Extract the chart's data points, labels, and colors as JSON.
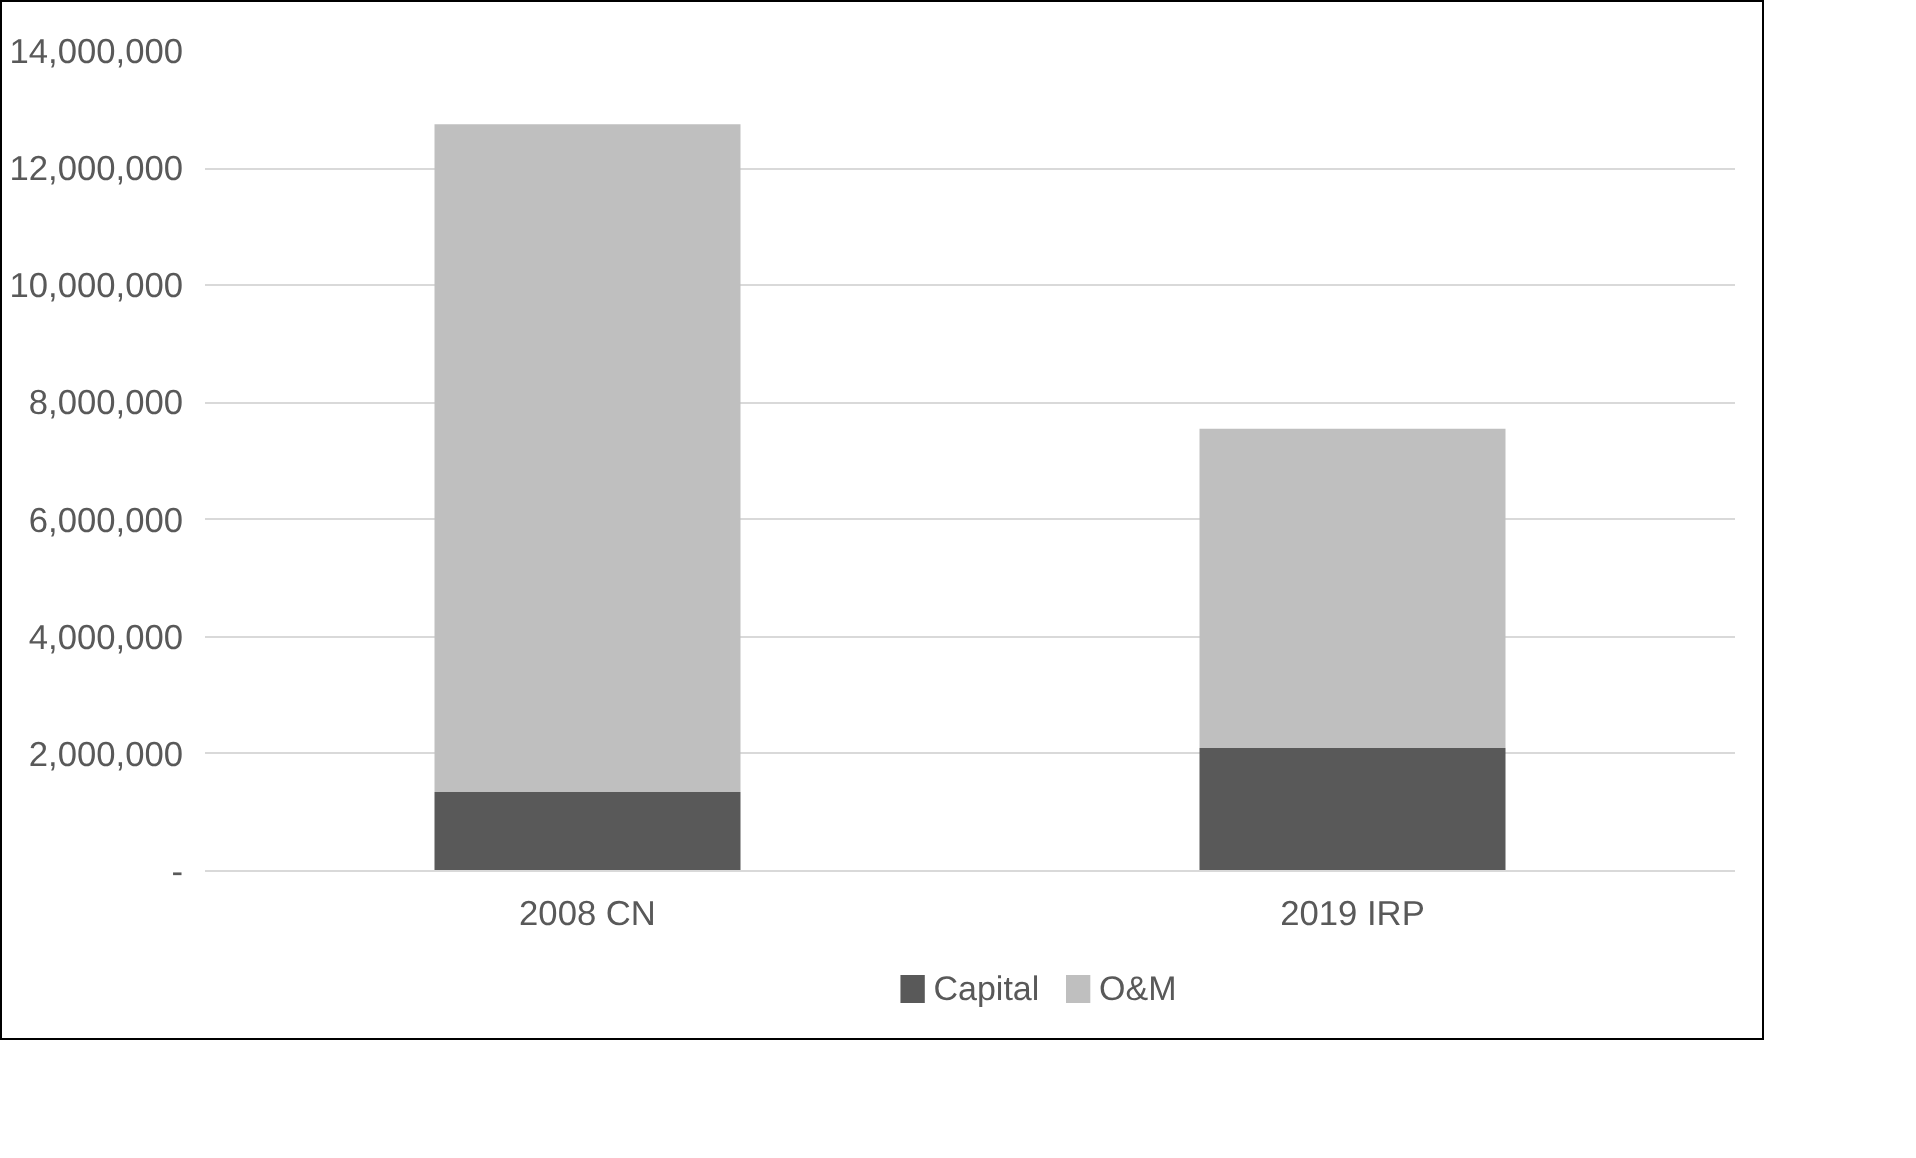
{
  "chart_data": {
    "type": "bar",
    "stacked": true,
    "categories": [
      "2008 CN",
      "2019 IRP"
    ],
    "series": [
      {
        "name": "Capital",
        "color": "#595959",
        "values": [
          1350000,
          2100000
        ]
      },
      {
        "name": "O&M",
        "color": "#bfbfbf",
        "values": [
          11400000,
          5450000
        ]
      }
    ],
    "ylim": [
      0,
      14000000
    ],
    "yticks": [
      {
        "value": 0,
        "label": "-"
      },
      {
        "value": 2000000,
        "label": "2,000,000"
      },
      {
        "value": 4000000,
        "label": "4,000,000"
      },
      {
        "value": 6000000,
        "label": "6,000,000"
      },
      {
        "value": 8000000,
        "label": "8,000,000"
      },
      {
        "value": 10000000,
        "label": "10,000,000"
      },
      {
        "value": 12000000,
        "label": "12,000,000"
      },
      {
        "value": 14000000,
        "label": "14,000,000"
      }
    ],
    "grid": "y",
    "legend": "bottom"
  }
}
